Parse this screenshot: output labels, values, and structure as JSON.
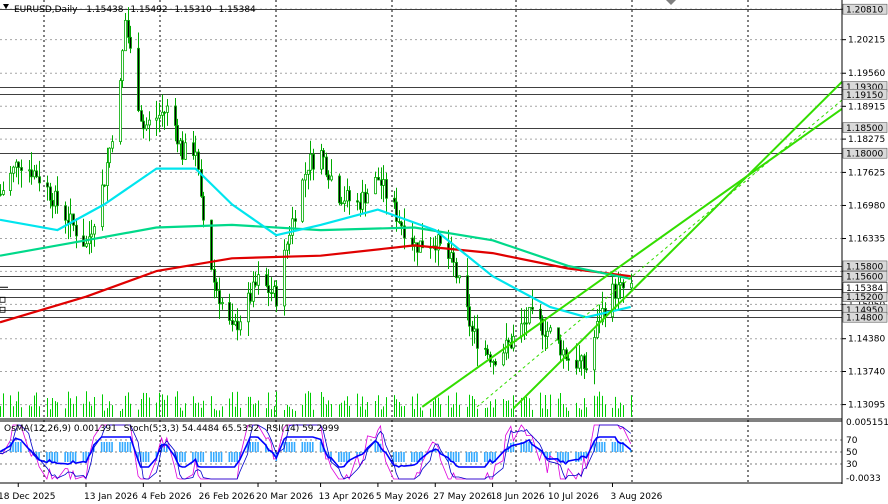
{
  "header": {
    "symbol": "EURUSD,Daily",
    "open": "1.15438",
    "high": "1.15492",
    "low": "1.15310",
    "close": "1.15384"
  },
  "indicator_header": {
    "osma": "OsMA(12,26,9) 0.001391",
    "stoch": "Stoch(5,3,3) 54.4484 65.5352",
    "rsi": "RSI(14) 59.2999"
  },
  "price_scale": [
    "1.20810",
    "1.20215",
    "1.19560",
    "1.18915",
    "1.18275",
    "1.17625",
    "1.16980",
    "1.16335",
    "1.15695",
    "1.15050",
    "1.14380",
    "1.13740",
    "1.13095"
  ],
  "levels": [
    {
      "value": "1.20810",
      "y": 1.2081
    },
    {
      "value": "1.19300",
      "y": 1.193
    },
    {
      "value": "1.19150",
      "y": 1.1915
    },
    {
      "value": "1.18500",
      "y": 1.185
    },
    {
      "value": "1.18000",
      "y": 1.18
    },
    {
      "value": "1.15800",
      "y": 1.158
    },
    {
      "value": "1.15600",
      "y": 1.156
    },
    {
      "value": "1.15350",
      "y": 1.1535
    },
    {
      "value": "1.15200",
      "y": 1.152
    },
    {
      "value": "1.14950",
      "y": 1.1495
    },
    {
      "value": "1.14800",
      "y": 1.148
    }
  ],
  "current_price": {
    "value": "1.15384",
    "y": 1.15384
  },
  "indicator_scale": [
    "0.005151",
    "70",
    "50",
    "30",
    "-0.0033"
  ],
  "dates": [
    "18 Dec 2025",
    "13 Jan 2026",
    "4 Feb 2026",
    "26 Feb 2026",
    "20 Mar 2026",
    "13 Apr 2026",
    "5 May 2026",
    "27 May 2026",
    "18 Jun 2026",
    "10 Jul 2026",
    "3 Aug 2026"
  ],
  "colors": {
    "ma_fast": "#00e5ee",
    "ma_mid": "#00d98a",
    "ma_slow": "#e00000",
    "channel": "#33dd00",
    "candles": "#00aa00",
    "volume": "#00cc00",
    "osma": "#33aaff",
    "stoch_main": "#0000cc",
    "stoch_signal": "#dd00dd",
    "rsi": "#0000ff"
  },
  "chart_data": {
    "type": "candlestick",
    "title": "EURUSD,Daily",
    "ylim": [
      1.1295,
      1.2095
    ],
    "x_start": "2025-12-11",
    "x_end": "2026-08-22",
    "close_series": [
      [
        "2025-12-11",
        1.172
      ],
      [
        "2025-12-18",
        1.1785
      ],
      [
        "2025-12-25",
        1.176
      ],
      [
        "2026-01-02",
        1.17
      ],
      [
        "2026-01-09",
        1.165
      ],
      [
        "2026-01-13",
        1.162
      ],
      [
        "2026-01-20",
        1.175
      ],
      [
        "2026-01-26",
        1.193
      ],
      [
        "2026-01-28",
        1.206
      ],
      [
        "2026-02-02",
        1.19
      ],
      [
        "2026-02-04",
        1.185
      ],
      [
        "2026-02-09",
        1.187
      ],
      [
        "2026-02-14",
        1.189
      ],
      [
        "2026-02-19",
        1.18
      ],
      [
        "2026-02-24",
        1.181
      ],
      [
        "2026-02-26",
        1.17
      ],
      [
        "2026-03-03",
        1.155
      ],
      [
        "2026-03-10",
        1.145
      ],
      [
        "2026-03-13",
        1.148
      ],
      [
        "2026-03-20",
        1.155
      ],
      [
        "2026-03-27",
        1.152
      ],
      [
        "2026-04-01",
        1.165
      ],
      [
        "2026-04-08",
        1.178
      ],
      [
        "2026-04-13",
        1.18
      ],
      [
        "2026-04-20",
        1.172
      ],
      [
        "2026-04-27",
        1.17
      ],
      [
        "2026-05-05",
        1.175
      ],
      [
        "2026-05-12",
        1.168
      ],
      [
        "2026-05-19",
        1.162
      ],
      [
        "2026-05-27",
        1.163
      ],
      [
        "2026-06-03",
        1.158
      ],
      [
        "2026-06-10",
        1.145
      ],
      [
        "2026-06-18",
        1.14
      ],
      [
        "2026-06-25",
        1.143
      ],
      [
        "2026-07-02",
        1.148
      ],
      [
        "2026-07-10",
        1.145
      ],
      [
        "2026-07-17",
        1.14
      ],
      [
        "2026-07-24",
        1.138
      ],
      [
        "2026-07-29",
        1.148
      ],
      [
        "2026-08-03",
        1.153
      ],
      [
        "2026-08-10",
        1.1538
      ]
    ],
    "ma_fast": [
      [
        "2025-12-11",
        1.167
      ],
      [
        "2026-01-02",
        1.165
      ],
      [
        "2026-01-20",
        1.17
      ],
      [
        "2026-02-09",
        1.177
      ],
      [
        "2026-02-24",
        1.177
      ],
      [
        "2026-03-10",
        1.17
      ],
      [
        "2026-03-27",
        1.164
      ],
      [
        "2026-04-13",
        1.166
      ],
      [
        "2026-05-05",
        1.169
      ],
      [
        "2026-05-27",
        1.165
      ],
      [
        "2026-06-18",
        1.156
      ],
      [
        "2026-07-10",
        1.15
      ],
      [
        "2026-07-24",
        1.148
      ],
      [
        "2026-08-10",
        1.15
      ]
    ],
    "ma_mid": [
      [
        "2025-12-11",
        1.16
      ],
      [
        "2026-01-13",
        1.163
      ],
      [
        "2026-02-09",
        1.1655
      ],
      [
        "2026-03-10",
        1.166
      ],
      [
        "2026-04-13",
        1.165
      ],
      [
        "2026-05-19",
        1.1655
      ],
      [
        "2026-06-18",
        1.163
      ],
      [
        "2026-07-17",
        1.158
      ],
      [
        "2026-08-10",
        1.1555
      ]
    ],
    "ma_slow": [
      [
        "2025-12-11",
        1.147
      ],
      [
        "2026-01-13",
        1.152
      ],
      [
        "2026-02-09",
        1.157
      ],
      [
        "2026-03-10",
        1.1595
      ],
      [
        "2026-04-13",
        1.16
      ],
      [
        "2026-05-19",
        1.162
      ],
      [
        "2026-06-18",
        1.1605
      ],
      [
        "2026-07-17",
        1.1575
      ],
      [
        "2026-08-10",
        1.156
      ]
    ],
    "channel": {
      "lower": [
        [
          "2026-06-26",
          1.1302
        ],
        [
          "2026-08-20",
          1.158
        ]
      ],
      "upper": [
        [
          "2026-05-22",
          1.1305
        ],
        [
          "2026-08-20",
          1.163
        ]
      ],
      "mid_dashed": [
        [
          "2026-06-12",
          1.1305
        ],
        [
          "2026-08-20",
          1.16
        ]
      ]
    }
  }
}
